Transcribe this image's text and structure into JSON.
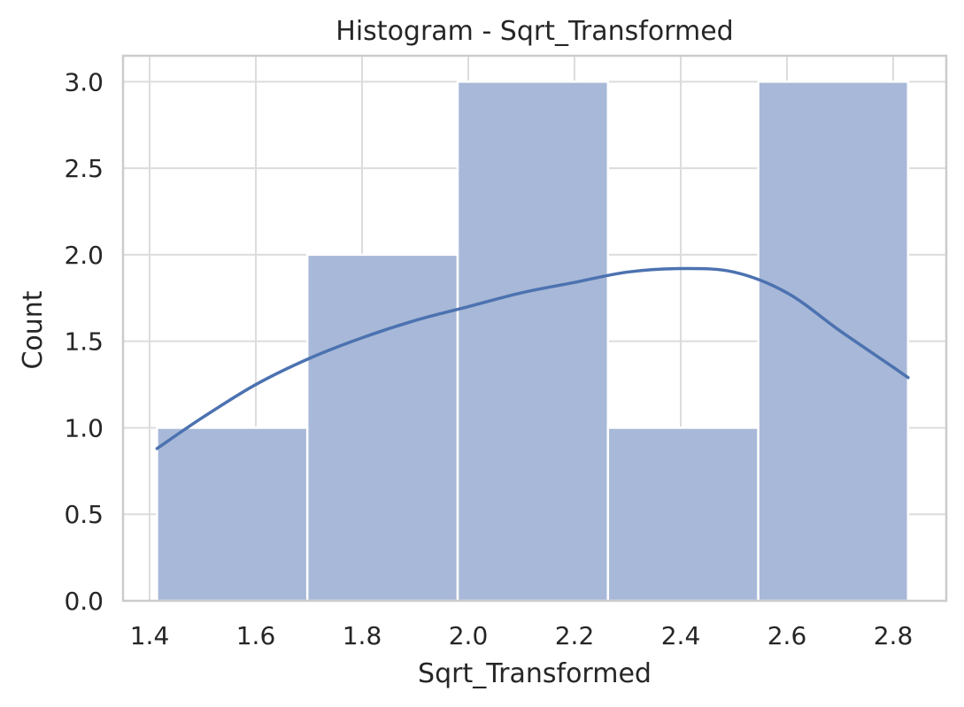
{
  "chart_data": {
    "type": "bar",
    "title": "Histogram - Sqrt_Transformed",
    "xlabel": "Sqrt_Transformed",
    "ylabel": "Count",
    "xlim": [
      1.35,
      2.9
    ],
    "ylim": [
      0,
      3.15
    ],
    "xticks": [
      1.4,
      1.6,
      1.8,
      2.0,
      2.2,
      2.4,
      2.6,
      2.8
    ],
    "xtick_labels": [
      "1.4",
      "1.6",
      "1.8",
      "2.0",
      "2.2",
      "2.4",
      "2.6",
      "2.8"
    ],
    "yticks": [
      0,
      0.5,
      1,
      1.5,
      2,
      2.5,
      3
    ],
    "ytick_labels": [
      "0.0",
      "0.5",
      "1.0",
      "1.5",
      "2.0",
      "2.5",
      "3.0"
    ],
    "grid": true,
    "bins": [
      {
        "x0": 1.414,
        "x1": 1.697,
        "count": 1
      },
      {
        "x0": 1.697,
        "x1": 1.98,
        "count": 2
      },
      {
        "x0": 1.98,
        "x1": 2.263,
        "count": 3
      },
      {
        "x0": 2.263,
        "x1": 2.546,
        "count": 1
      },
      {
        "x0": 2.546,
        "x1": 2.828,
        "count": 3
      }
    ],
    "kde": {
      "x": [
        1.414,
        1.5,
        1.6,
        1.7,
        1.8,
        1.9,
        2.0,
        2.1,
        2.2,
        2.3,
        2.4,
        2.5,
        2.6,
        2.7,
        2.8,
        2.828
      ],
      "y": [
        0.88,
        1.06,
        1.25,
        1.4,
        1.52,
        1.62,
        1.7,
        1.78,
        1.84,
        1.9,
        1.92,
        1.9,
        1.78,
        1.56,
        1.35,
        1.29
      ]
    },
    "colors": {
      "bar_fill": "#a5b7d7",
      "bar_edge": "#ffffff",
      "kde_line": "#4c72b0",
      "grid": "#dcdcdc",
      "spine": "#cccccc"
    }
  }
}
